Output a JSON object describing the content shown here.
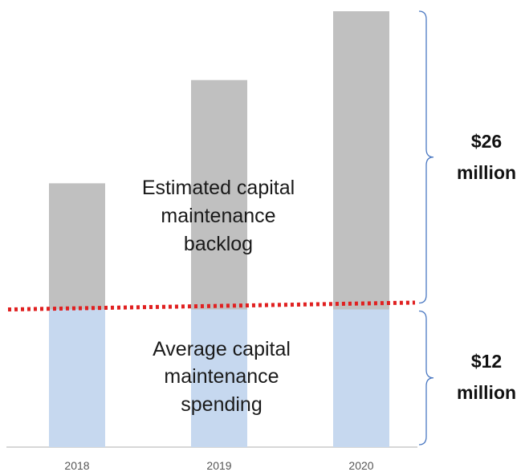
{
  "chart_data": {
    "type": "bar",
    "stacked": true,
    "categories": [
      "2018",
      "2019",
      "2020"
    ],
    "series": [
      {
        "values": [
          12,
          12,
          12
        ],
        "color": "#c6d8ef"
      },
      {
        "values": [
          11,
          20,
          26
        ],
        "color": "#c0c0c0"
      }
    ],
    "ylim": [
      0,
      38
    ],
    "grid": false,
    "reference_line": {
      "y_start": 12,
      "y_end": 12.6,
      "color": "#e02020",
      "style": "dotted"
    },
    "braces": [
      {
        "from": 12,
        "to": 38,
        "label_lines": [
          "$26",
          "million"
        ]
      },
      {
        "from": 0,
        "to": 12,
        "label_lines": [
          "$12",
          "million"
        ]
      }
    ],
    "annotations": {
      "backlog": [
        "Estimated capital",
        "maintenance",
        "backlog"
      ],
      "spending": [
        "Average capital",
        "maintenance",
        "spending"
      ]
    },
    "colors": {
      "axis": "#bfbfbf",
      "brace": "#4a78c2"
    }
  }
}
